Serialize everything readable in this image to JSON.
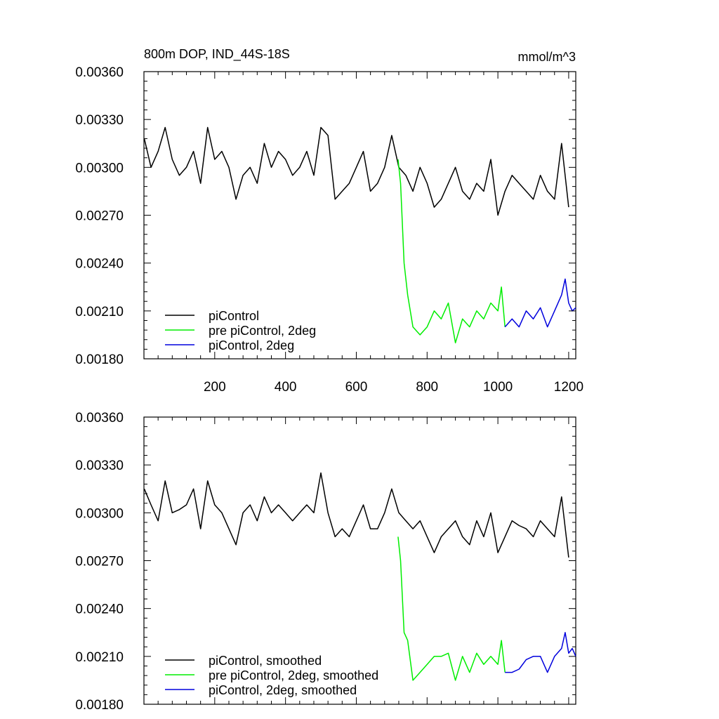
{
  "chart_data": [
    {
      "type": "line",
      "title": "800m DOP, IND_44S-18S",
      "units": "mmol/m^3",
      "xlim": [
        0,
        1220
      ],
      "ylim": [
        0.0018,
        0.0036
      ],
      "x_ticks": [
        200,
        400,
        600,
        800,
        1000,
        1200
      ],
      "x_tick_labels": [
        "200",
        "400",
        "600",
        "800",
        "1000",
        "1200"
      ],
      "y_ticks": [
        0.0018,
        0.0021,
        0.0024,
        0.0027,
        0.003,
        0.0033,
        0.0036
      ],
      "y_tick_labels": [
        "0.00180",
        "0.00210",
        "0.00240",
        "0.00270",
        "0.00300",
        "0.00330",
        "0.00360"
      ],
      "legend_position": "bottom-left",
      "series": [
        {
          "name": "piControl",
          "color": "#000000",
          "x": [
            1,
            20,
            40,
            60,
            80,
            100,
            120,
            140,
            160,
            180,
            200,
            220,
            240,
            260,
            280,
            300,
            320,
            340,
            360,
            380,
            400,
            420,
            440,
            460,
            480,
            500,
            520,
            540,
            560,
            580,
            600,
            620,
            640,
            660,
            680,
            700,
            720,
            740,
            760,
            780,
            800,
            820,
            840,
            860,
            880,
            900,
            920,
            940,
            960,
            980,
            1000,
            1020,
            1040,
            1060,
            1080,
            1100,
            1120,
            1140,
            1160,
            1180,
            1200
          ],
          "values": [
            0.00318,
            0.003,
            0.0031,
            0.00325,
            0.00305,
            0.00295,
            0.003,
            0.0031,
            0.0029,
            0.00325,
            0.00305,
            0.0031,
            0.003,
            0.0028,
            0.00295,
            0.003,
            0.0029,
            0.00315,
            0.003,
            0.0031,
            0.00305,
            0.00295,
            0.003,
            0.0031,
            0.00295,
            0.00325,
            0.0032,
            0.0028,
            0.00285,
            0.0029,
            0.003,
            0.0031,
            0.00285,
            0.0029,
            0.003,
            0.0032,
            0.003,
            0.00295,
            0.00285,
            0.003,
            0.0029,
            0.00275,
            0.0028,
            0.0029,
            0.003,
            0.00285,
            0.0028,
            0.0029,
            0.00285,
            0.00305,
            0.0027,
            0.00285,
            0.00295,
            0.0029,
            0.00285,
            0.0028,
            0.00295,
            0.00285,
            0.0028,
            0.00315,
            0.00275
          ]
        },
        {
          "name": "pre piControl, 2deg",
          "color": "#00ee00",
          "x": [
            718,
            725,
            735,
            745,
            760,
            780,
            800,
            820,
            840,
            860,
            880,
            900,
            920,
            940,
            960,
            980,
            1000,
            1010,
            1020
          ],
          "values": [
            0.00305,
            0.0029,
            0.0024,
            0.0022,
            0.002,
            0.00195,
            0.002,
            0.0021,
            0.00205,
            0.00215,
            0.0019,
            0.00205,
            0.002,
            0.0021,
            0.00205,
            0.00215,
            0.0021,
            0.00225,
            0.002
          ]
        },
        {
          "name": "piControl, 2deg",
          "color": "#0000dd",
          "x": [
            1020,
            1040,
            1060,
            1080,
            1100,
            1120,
            1140,
            1160,
            1180,
            1190,
            1200,
            1210,
            1220
          ],
          "values": [
            0.002,
            0.00205,
            0.002,
            0.0021,
            0.00205,
            0.00212,
            0.002,
            0.0021,
            0.0022,
            0.0023,
            0.00215,
            0.0021,
            0.00212
          ]
        }
      ]
    },
    {
      "type": "line",
      "xlim": [
        0,
        1220
      ],
      "ylim": [
        0.0018,
        0.0036
      ],
      "y_ticks": [
        0.0018,
        0.0021,
        0.0024,
        0.0027,
        0.003,
        0.0033,
        0.0036
      ],
      "y_tick_labels": [
        "0.00180",
        "0.00210",
        "0.00240",
        "0.00270",
        "0.00300",
        "0.00330",
        "0.00360"
      ],
      "legend_position": "bottom-left",
      "series": [
        {
          "name": "piControl, smoothed",
          "color": "#000000",
          "x": [
            1,
            20,
            40,
            60,
            80,
            100,
            120,
            140,
            160,
            180,
            200,
            220,
            240,
            260,
            280,
            300,
            320,
            340,
            360,
            380,
            400,
            420,
            440,
            460,
            480,
            500,
            520,
            540,
            560,
            580,
            600,
            620,
            640,
            660,
            680,
            700,
            720,
            740,
            760,
            780,
            800,
            820,
            840,
            860,
            880,
            900,
            920,
            940,
            960,
            980,
            1000,
            1020,
            1040,
            1060,
            1080,
            1100,
            1120,
            1140,
            1160,
            1180,
            1200
          ],
          "values": [
            0.00315,
            0.00305,
            0.00295,
            0.0032,
            0.003,
            0.00302,
            0.00305,
            0.00315,
            0.0029,
            0.0032,
            0.00305,
            0.003,
            0.0029,
            0.0028,
            0.003,
            0.00305,
            0.00295,
            0.0031,
            0.003,
            0.00305,
            0.003,
            0.00295,
            0.003,
            0.00305,
            0.003,
            0.00325,
            0.003,
            0.00285,
            0.0029,
            0.00285,
            0.00295,
            0.00305,
            0.0029,
            0.0029,
            0.003,
            0.00315,
            0.003,
            0.00295,
            0.0029,
            0.00295,
            0.00285,
            0.00275,
            0.00285,
            0.0029,
            0.00295,
            0.00285,
            0.0028,
            0.00295,
            0.00285,
            0.003,
            0.00275,
            0.00285,
            0.00295,
            0.00292,
            0.0029,
            0.00285,
            0.00295,
            0.0029,
            0.00285,
            0.0031,
            0.00272
          ]
        },
        {
          "name": "pre piControl, 2deg, smoothed",
          "color": "#00ee00",
          "x": [
            718,
            725,
            735,
            745,
            760,
            780,
            800,
            820,
            840,
            860,
            880,
            900,
            920,
            940,
            960,
            980,
            1000,
            1010,
            1020
          ],
          "values": [
            0.00285,
            0.0027,
            0.00225,
            0.0022,
            0.00195,
            0.002,
            0.00205,
            0.0021,
            0.0021,
            0.00212,
            0.00195,
            0.0021,
            0.002,
            0.00212,
            0.00205,
            0.0021,
            0.00205,
            0.0022,
            0.002
          ]
        },
        {
          "name": "piControl, 2deg, smoothed",
          "color": "#0000dd",
          "x": [
            1020,
            1040,
            1060,
            1080,
            1100,
            1120,
            1140,
            1160,
            1180,
            1190,
            1200,
            1210,
            1220
          ],
          "values": [
            0.002,
            0.002,
            0.00202,
            0.00208,
            0.0021,
            0.0021,
            0.002,
            0.0021,
            0.00215,
            0.00225,
            0.00212,
            0.00215,
            0.0021
          ]
        }
      ]
    }
  ]
}
